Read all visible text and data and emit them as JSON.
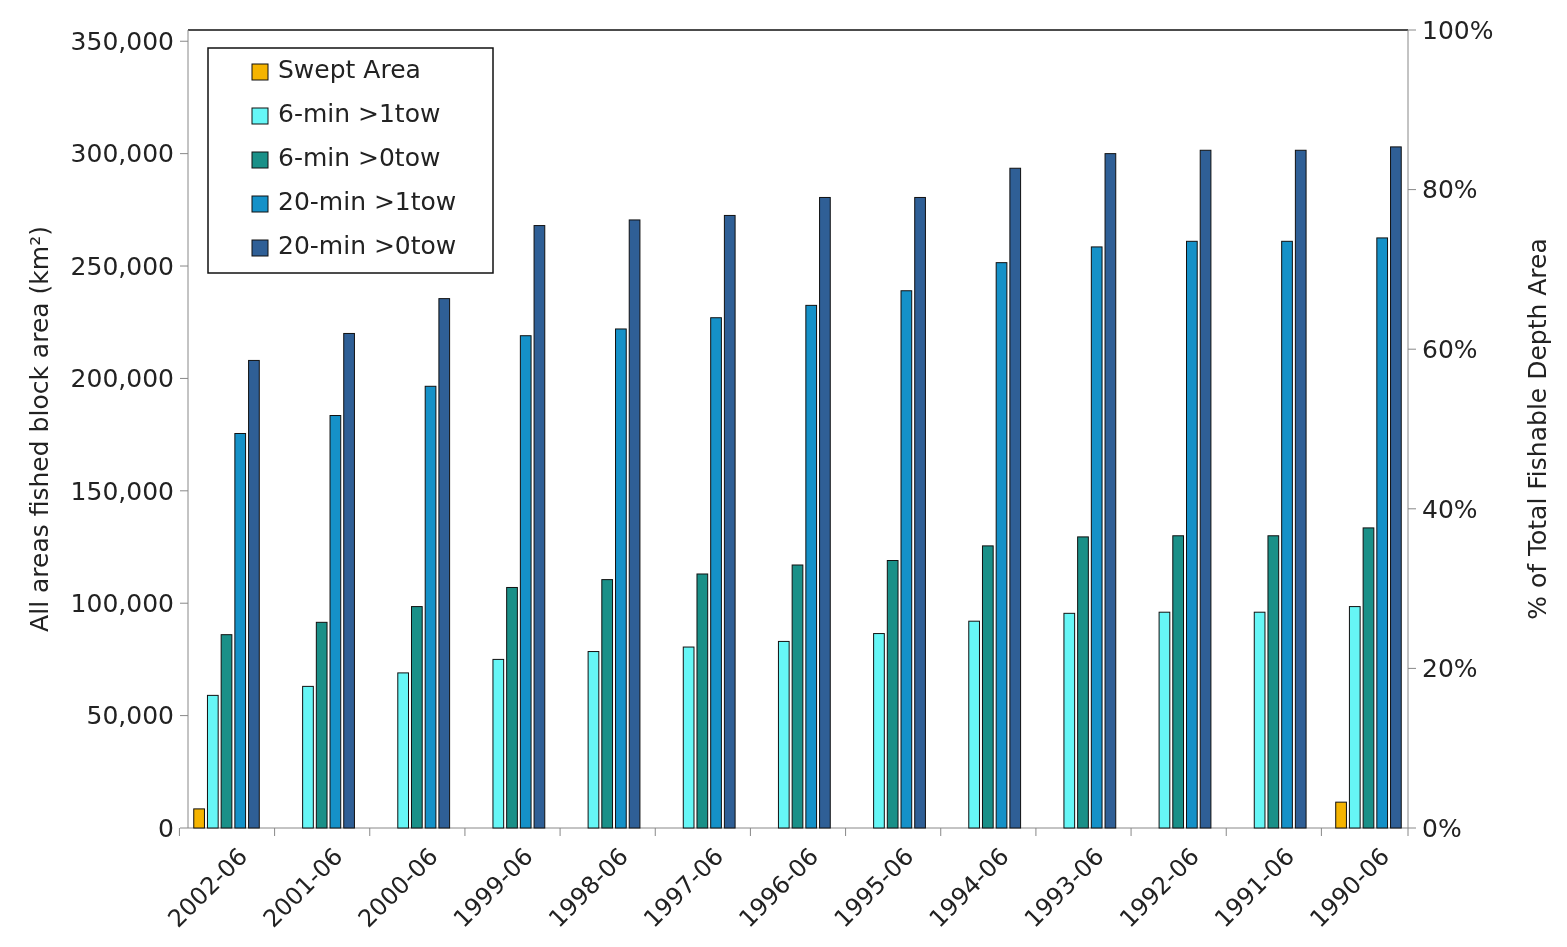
{
  "chart_data": {
    "type": "bar",
    "ylabel": "All areas fished block area (km²)",
    "y2label": "% of Total Fishable Depth Area",
    "categories": [
      "2002-06",
      "2001-06",
      "2000-06",
      "1999-06",
      "1998-06",
      "1997-06",
      "1996-06",
      "1995-06",
      "1994-06",
      "1993-06",
      "1992-06",
      "1991-06",
      "1990-06"
    ],
    "series": [
      {
        "name": "Swept Area",
        "color": "#f5b400",
        "values": [
          8500,
          null,
          null,
          null,
          null,
          null,
          null,
          null,
          null,
          null,
          null,
          null,
          11500
        ]
      },
      {
        "name": "6-min >1tow",
        "color": "#66f6f6",
        "values": [
          59000,
          63000,
          69000,
          75000,
          78500,
          80500,
          83000,
          86500,
          92000,
          95500,
          96000,
          96000,
          98500
        ]
      },
      {
        "name": "6-min >0tow",
        "color": "#1a9088",
        "values": [
          86000,
          91500,
          98500,
          107000,
          110500,
          113000,
          117000,
          119000,
          125500,
          129500,
          130000,
          130000,
          133500
        ]
      },
      {
        "name": "20-min >1tow",
        "color": "#1591c8",
        "values": [
          175500,
          183500,
          196500,
          219000,
          222000,
          227000,
          232500,
          239000,
          251500,
          258500,
          261000,
          261000,
          262500
        ]
      },
      {
        "name": "20-min >0tow",
        "color": "#2f5f96",
        "values": [
          208000,
          220000,
          235500,
          268000,
          270500,
          272500,
          280500,
          280500,
          293500,
          300000,
          301500,
          301500,
          303000
        ]
      }
    ],
    "ylim": [
      0,
      355000
    ],
    "yticks": [
      {
        "value": 0,
        "label": "0"
      },
      {
        "value": 50000,
        "label": "50,000"
      },
      {
        "value": 100000,
        "label": "100,000"
      },
      {
        "value": 150000,
        "label": "150,000"
      },
      {
        "value": 200000,
        "label": "200,000"
      },
      {
        "value": 250000,
        "label": "250,000"
      },
      {
        "value": 300000,
        "label": "300,000"
      },
      {
        "value": 350000,
        "label": "350,000"
      }
    ],
    "y2lim": [
      0,
      100
    ],
    "y2ticks": [
      {
        "value": 0,
        "label": "0%"
      },
      {
        "value": 20,
        "label": "20%"
      },
      {
        "value": 40,
        "label": "40%"
      },
      {
        "value": 60,
        "label": "60%"
      },
      {
        "value": 80,
        "label": "80%"
      },
      {
        "value": 100,
        "label": "100%"
      }
    ],
    "legend": "top left"
  }
}
